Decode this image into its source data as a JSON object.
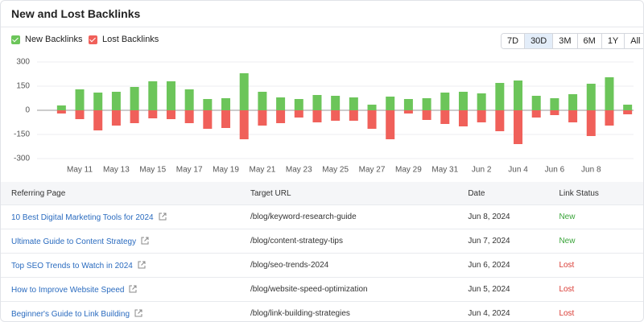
{
  "title": "New and Lost Backlinks",
  "ranges": {
    "options": [
      "7D",
      "30D",
      "3M",
      "6M",
      "1Y",
      "All"
    ],
    "active": 1
  },
  "chart_data": {
    "type": "bar",
    "categories": [
      null,
      "May 11",
      null,
      "May 13",
      null,
      "May 15",
      null,
      "May 17",
      null,
      "May 19",
      null,
      "May 21",
      null,
      "May 23",
      null,
      "May 25",
      null,
      "May 27",
      null,
      "May 29",
      null,
      "May 31",
      null,
      "Jun 2",
      null,
      "Jun 4",
      null,
      "Jun 6",
      null,
      "Jun 8",
      null,
      null
    ],
    "series": [
      {
        "name": "New Backlinks",
        "color": "#6cc55a",
        "values": [
          30,
          130,
          110,
          115,
          145,
          180,
          180,
          130,
          70,
          75,
          230,
          115,
          80,
          70,
          95,
          90,
          80,
          35,
          85,
          70,
          75,
          110,
          115,
          105,
          170,
          185,
          90,
          75,
          100,
          165,
          205,
          35
        ]
      },
      {
        "name": "Lost Backlinks",
        "color": "#f0605a",
        "values": [
          -20,
          -55,
          -125,
          -95,
          -80,
          -50,
          -55,
          -80,
          -115,
          -110,
          -180,
          -95,
          -80,
          -45,
          -75,
          -65,
          -65,
          -115,
          -180,
          -20,
          -60,
          -85,
          -100,
          -75,
          -130,
          -210,
          -45,
          -30,
          -75,
          -160,
          -95,
          -25
        ]
      }
    ],
    "ylim": [
      -350,
      350
    ],
    "yticks": [
      -300,
      -150,
      0,
      150,
      300
    ],
    "grid": true
  },
  "table": {
    "columns": [
      "Referring Page",
      "Target URL",
      "Date",
      "Link Status"
    ],
    "rows": [
      {
        "page": "10 Best Digital Marketing Tools for 2024",
        "url": "/blog/keyword-research-guide",
        "date": "Jun 8, 2024",
        "status": "New",
        "status_color": "#3aa43a"
      },
      {
        "page": "Ultimate Guide to Content Strategy",
        "url": "/blog/content-strategy-tips",
        "date": "Jun 7, 2024",
        "status": "New",
        "status_color": "#3aa43a"
      },
      {
        "page": "Top SEO Trends to Watch in 2024",
        "url": "/blog/seo-trends-2024",
        "date": "Jun 6, 2024",
        "status": "Lost",
        "status_color": "#d93a33"
      },
      {
        "page": "How to Improve Website Speed",
        "url": "/blog/website-speed-optimization",
        "date": "Jun 5, 2024",
        "status": "Lost",
        "status_color": "#d93a33"
      },
      {
        "page": "Beginner's Guide to Link Building",
        "url": "/blog/link-building-strategies",
        "date": "Jun 4, 2024",
        "status": "Lost",
        "status_color": "#d93a33"
      }
    ]
  }
}
